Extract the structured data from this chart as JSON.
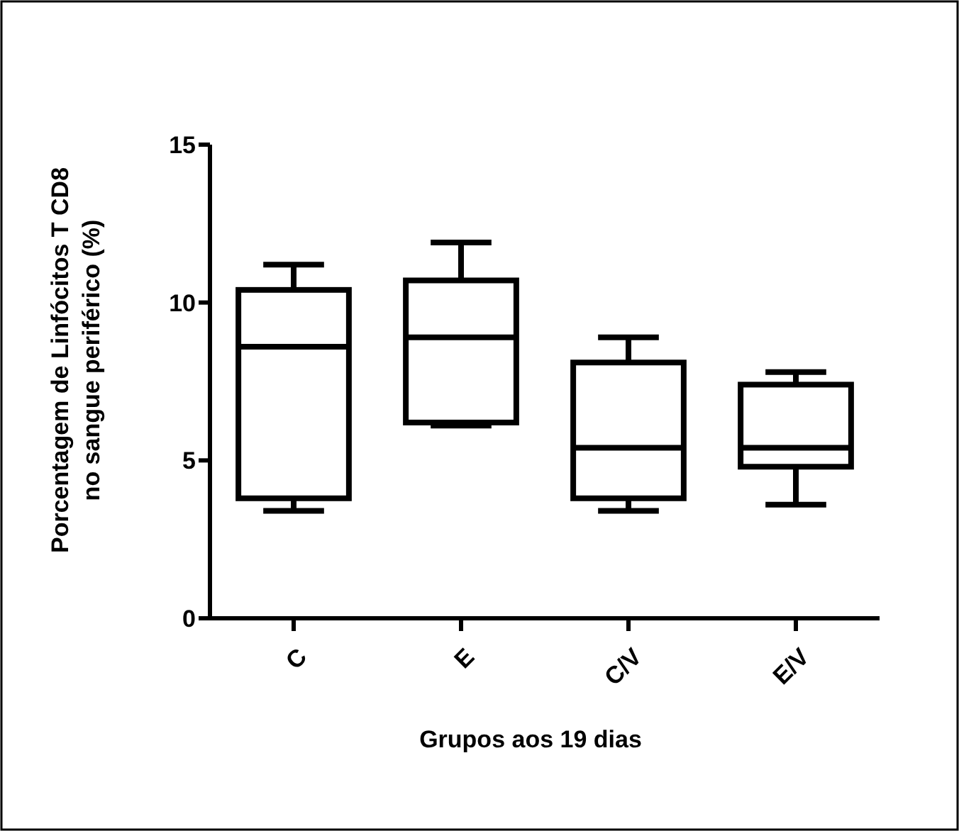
{
  "chart_data": {
    "type": "box",
    "xlabel": "Grupos aos 19 dias",
    "ylabel": "Porcentagem de Linfócitos T CD8\nno sangue periférico (%)",
    "categories": [
      "C",
      "E",
      "C/V",
      "E/V"
    ],
    "boxes": [
      {
        "low": 3.4,
        "q1": 3.8,
        "median": 8.6,
        "q3": 10.4,
        "high": 11.2
      },
      {
        "low": 6.1,
        "q1": 6.2,
        "median": 8.9,
        "q3": 10.7,
        "high": 11.9
      },
      {
        "low": 3.4,
        "q1": 3.8,
        "median": 5.4,
        "q3": 8.1,
        "high": 8.9
      },
      {
        "low": 3.6,
        "q1": 4.8,
        "median": 5.4,
        "q3": 7.4,
        "high": 7.8
      }
    ],
    "color": "#000000",
    "ylim": [
      0,
      15
    ],
    "yticks": [
      0,
      5,
      10,
      15
    ]
  }
}
